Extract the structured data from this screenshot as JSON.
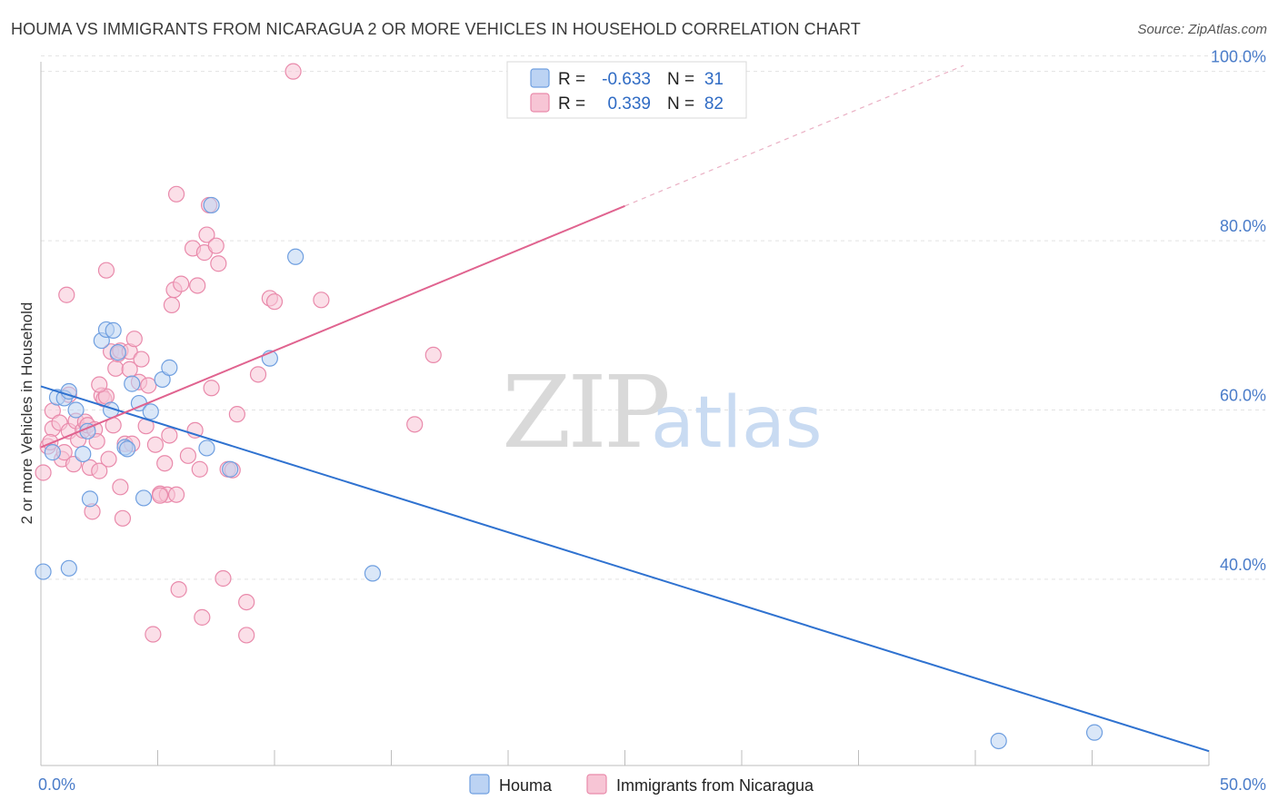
{
  "title": "HOUMA VS IMMIGRANTS FROM NICARAGUA 2 OR MORE VEHICLES IN HOUSEHOLD CORRELATION CHART",
  "source": "Source: ZipAtlas.com",
  "watermark": {
    "zip": "ZIP",
    "atlas": "atlas"
  },
  "chart_data": {
    "type": "scatter",
    "title": "HOUMA VS IMMIGRANTS FROM NICARAGUA 2 OR MORE VEHICLES IN HOUSEHOLD CORRELATION CHART",
    "xlabel": "",
    "ylabel": "2 or more Vehicles in Household",
    "xlim": [
      0,
      50
    ],
    "ylim": [
      18,
      102
    ],
    "x_tick_labels": [
      {
        "value": 0,
        "label": "0.0%"
      },
      {
        "value": 50,
        "label": "50.0%"
      }
    ],
    "x_minor_ticks": [
      0,
      5,
      10,
      15,
      20,
      25,
      30,
      35,
      40,
      45,
      50
    ],
    "y_ticks": [
      {
        "value": 40,
        "label": "40.0%"
      },
      {
        "value": 60,
        "label": "60.0%"
      },
      {
        "value": 80,
        "label": "80.0%"
      },
      {
        "value": 100,
        "label": "100.0%"
      }
    ],
    "legend": {
      "position": "top-center",
      "rows": [
        {
          "r_label": "R = ",
          "r_value": "-0.633",
          "n_label": "N = ",
          "n_value": "31"
        },
        {
          "r_label": "R = ",
          "r_value": "0.339",
          "n_label": "N = ",
          "n_value": "82"
        }
      ]
    },
    "series": [
      {
        "name": "Houma",
        "color": "#6f9fe0",
        "fill": "#bcd3f3",
        "line_color": "#2f72d0",
        "trend": {
          "x0": 0,
          "y0": 62.8,
          "x1": 50,
          "y1": 19.7,
          "dashed_to": null
        },
        "points": [
          [
            0.1,
            40.9
          ],
          [
            0.5,
            55.0
          ],
          [
            0.7,
            61.5
          ],
          [
            1.0,
            61.4
          ],
          [
            1.2,
            62.2
          ],
          [
            1.5,
            60.0
          ],
          [
            1.8,
            54.8
          ],
          [
            2.1,
            49.5
          ],
          [
            1.2,
            41.3
          ],
          [
            2.6,
            68.2
          ],
          [
            2.8,
            69.5
          ],
          [
            3.1,
            69.4
          ],
          [
            3.0,
            60.0
          ],
          [
            3.3,
            66.8
          ],
          [
            3.6,
            55.6
          ],
          [
            3.9,
            63.1
          ],
          [
            4.2,
            60.8
          ],
          [
            4.4,
            49.6
          ],
          [
            4.7,
            59.8
          ],
          [
            5.2,
            63.6
          ],
          [
            5.5,
            65.0
          ],
          [
            7.1,
            55.5
          ],
          [
            7.3,
            84.2
          ],
          [
            8.1,
            53.0
          ],
          [
            9.8,
            66.1
          ],
          [
            10.9,
            78.1
          ],
          [
            14.2,
            40.7
          ],
          [
            41.0,
            20.9
          ],
          [
            45.1,
            21.9
          ],
          [
            3.7,
            55.4
          ],
          [
            2.0,
            57.5
          ]
        ]
      },
      {
        "name": "Immigrants from Nicaragua",
        "color": "#e98aab",
        "fill": "#f7c5d5",
        "line_color": "#e0638f",
        "trend": {
          "x0": 0,
          "y0": 55.6,
          "x1": 25,
          "y1": 84.1,
          "dashed_to": {
            "x": 39.5,
            "y": 100.7
          }
        },
        "points": [
          [
            0.1,
            52.6
          ],
          [
            0.3,
            55.7
          ],
          [
            0.5,
            57.8
          ],
          [
            0.5,
            59.9
          ],
          [
            0.8,
            58.5
          ],
          [
            0.9,
            54.2
          ],
          [
            1.0,
            55.0
          ],
          [
            1.2,
            57.5
          ],
          [
            1.2,
            61.8
          ],
          [
            1.4,
            53.6
          ],
          [
            1.5,
            58.7
          ],
          [
            1.6,
            56.5
          ],
          [
            1.8,
            57.6
          ],
          [
            1.9,
            58.6
          ],
          [
            2.0,
            58.2
          ],
          [
            2.1,
            53.2
          ],
          [
            2.2,
            48.0
          ],
          [
            2.3,
            57.7
          ],
          [
            2.4,
            56.3
          ],
          [
            2.5,
            52.8
          ],
          [
            2.6,
            61.7
          ],
          [
            2.7,
            61.3
          ],
          [
            2.8,
            76.5
          ],
          [
            2.8,
            61.6
          ],
          [
            2.9,
            54.2
          ],
          [
            3.0,
            66.9
          ],
          [
            3.1,
            58.2
          ],
          [
            3.2,
            64.9
          ],
          [
            3.3,
            66.6
          ],
          [
            3.4,
            67.0
          ],
          [
            3.5,
            47.2
          ],
          [
            3.6,
            56.0
          ],
          [
            3.8,
            64.8
          ],
          [
            3.8,
            66.9
          ],
          [
            3.9,
            56.0
          ],
          [
            4.0,
            68.4
          ],
          [
            4.2,
            63.3
          ],
          [
            4.3,
            66.0
          ],
          [
            4.5,
            58.1
          ],
          [
            4.6,
            62.9
          ],
          [
            4.9,
            55.9
          ],
          [
            5.1,
            50.1
          ],
          [
            5.3,
            53.7
          ],
          [
            5.4,
            50.0
          ],
          [
            5.5,
            57.0
          ],
          [
            5.6,
            72.4
          ],
          [
            5.7,
            74.2
          ],
          [
            5.8,
            50.0
          ],
          [
            5.8,
            85.5
          ],
          [
            5.9,
            38.8
          ],
          [
            6.0,
            74.9
          ],
          [
            6.3,
            54.6
          ],
          [
            6.5,
            79.1
          ],
          [
            6.6,
            57.6
          ],
          [
            6.7,
            74.7
          ],
          [
            6.8,
            53.0
          ],
          [
            6.9,
            35.5
          ],
          [
            7.0,
            78.6
          ],
          [
            7.1,
            80.7
          ],
          [
            7.2,
            84.2
          ],
          [
            7.3,
            62.6
          ],
          [
            7.5,
            79.4
          ],
          [
            7.6,
            77.3
          ],
          [
            7.8,
            40.1
          ],
          [
            8.0,
            53.0
          ],
          [
            8.2,
            52.9
          ],
          [
            8.4,
            59.5
          ],
          [
            8.8,
            37.3
          ],
          [
            8.8,
            33.4
          ],
          [
            9.3,
            64.2
          ],
          [
            9.8,
            73.2
          ],
          [
            10.0,
            72.8
          ],
          [
            10.8,
            100.0
          ],
          [
            12.0,
            73.0
          ],
          [
            16.0,
            58.3
          ],
          [
            16.8,
            66.5
          ],
          [
            1.1,
            73.6
          ],
          [
            0.4,
            56.2
          ],
          [
            3.4,
            50.9
          ],
          [
            4.8,
            33.5
          ],
          [
            5.1,
            49.9
          ],
          [
            2.5,
            63.0
          ]
        ]
      }
    ]
  },
  "bottom_legend": [
    {
      "label": "Houma"
    },
    {
      "label": "Immigrants from Nicaragua"
    }
  ]
}
